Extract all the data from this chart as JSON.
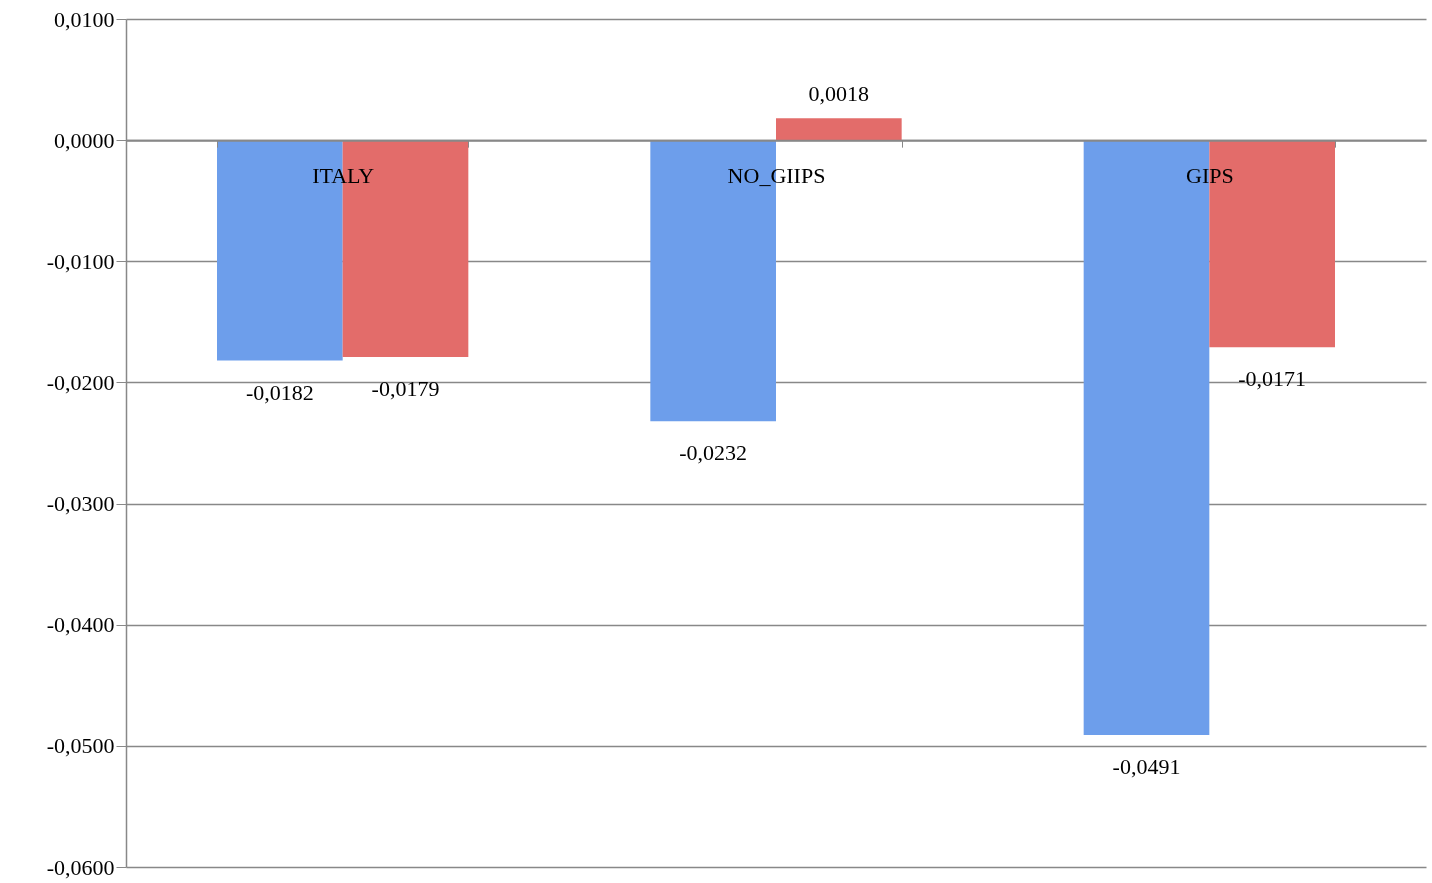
{
  "chart_data": {
    "type": "bar",
    "categories": [
      "ITALY",
      "NO_GIIPS",
      "GIPS"
    ],
    "series": [
      {
        "color": "#6d9eeb",
        "values": [
          -0.0182,
          -0.0232,
          -0.0491
        ],
        "value_labels": [
          "-0,0182",
          "-0,0232",
          "-0,0491"
        ]
      },
      {
        "color": "#e36c6a",
        "values": [
          -0.0179,
          0.0018,
          -0.0171
        ],
        "value_labels": [
          "-0,0179",
          "0,0018",
          "-0,0171"
        ]
      }
    ],
    "ylim": [
      -0.06,
      0.01
    ],
    "yticks": [
      {
        "value": -0.06,
        "label": "-0,0600"
      },
      {
        "value": -0.05,
        "label": "-0,0500"
      },
      {
        "value": -0.04,
        "label": "-0,0400"
      },
      {
        "value": -0.03,
        "label": "-0,0300"
      },
      {
        "value": -0.02,
        "label": "-0,0200"
      },
      {
        "value": -0.01,
        "label": "-0,0100"
      },
      {
        "value": 0,
        "label": "0,0000"
      },
      {
        "value": 0.01,
        "label": "0,0100"
      }
    ],
    "grid": "y"
  }
}
